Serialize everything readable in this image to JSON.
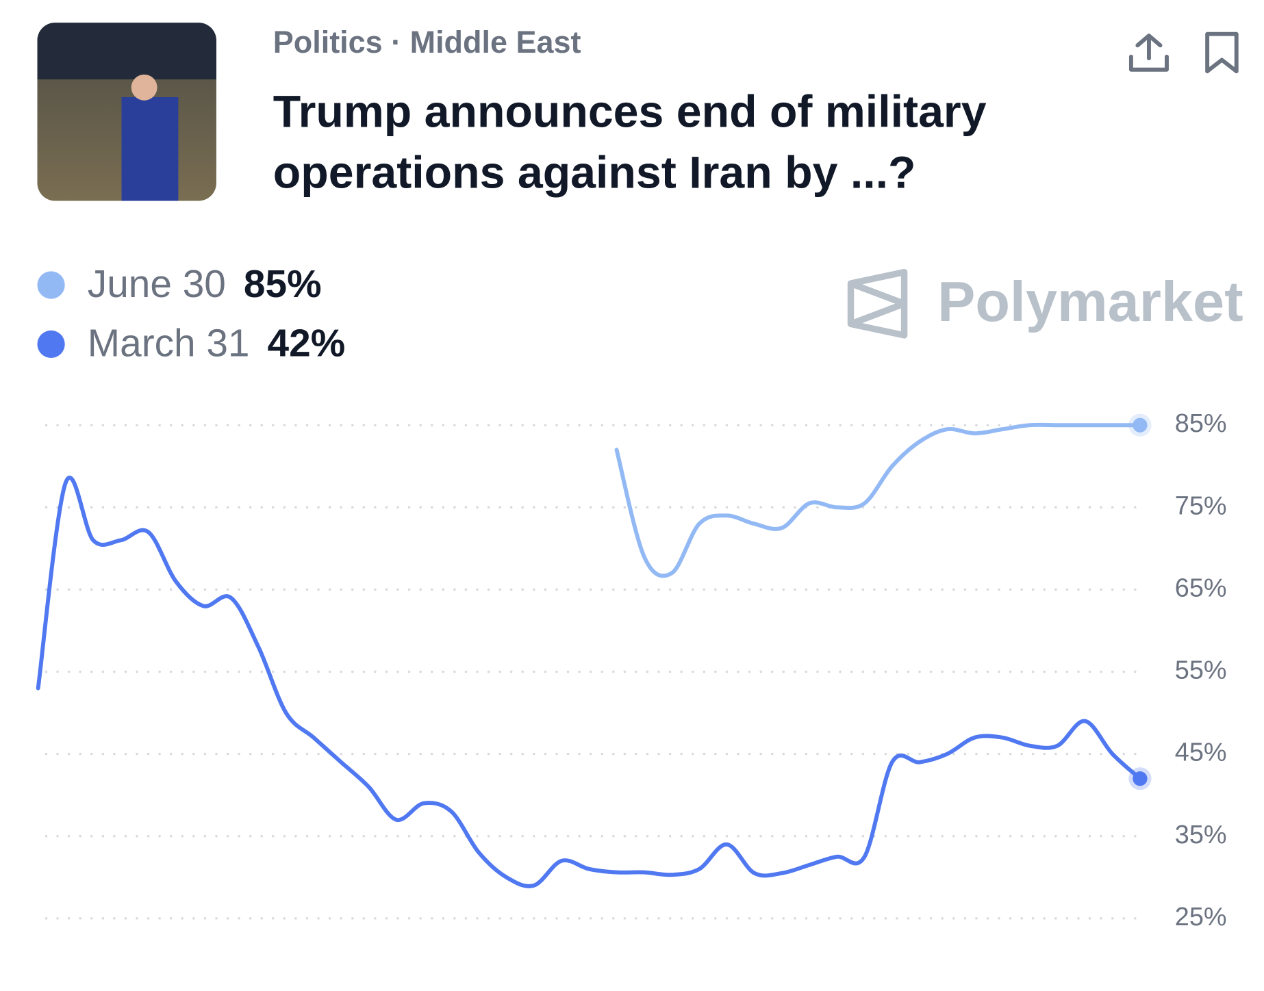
{
  "header": {
    "category": "Politics · Middle East",
    "title_lines": [
      "Trump announces end of military",
      "operations against Iran by ...?"
    ],
    "brand": "Polymarket"
  },
  "chart_data": {
    "type": "line",
    "categories": [
      null,
      null,
      null,
      null,
      null,
      null,
      null,
      null,
      null,
      null,
      null,
      null,
      null,
      null,
      null,
      null,
      null,
      null,
      null,
      null,
      null,
      null,
      null,
      null,
      null,
      null,
      null,
      null,
      null,
      null,
      null,
      null,
      null,
      null,
      null,
      null,
      null,
      null,
      null,
      null,
      null
    ],
    "series": [
      {
        "name": "June 30",
        "legend_value": "85%",
        "color": "#93b9f5",
        "values": [
          null,
          null,
          null,
          null,
          null,
          null,
          null,
          null,
          null,
          null,
          null,
          null,
          null,
          null,
          null,
          null,
          null,
          null,
          null,
          null,
          null,
          82,
          69,
          67,
          73,
          74,
          73,
          72.5,
          75.5,
          75,
          75.5,
          80,
          83,
          84.5,
          84,
          84.5,
          85,
          85,
          85,
          85,
          85
        ]
      },
      {
        "name": "March 31",
        "legend_value": "42%",
        "color": "#5078f0",
        "values": [
          53,
          78,
          71,
          71,
          72,
          66,
          63,
          64,
          58,
          50,
          47,
          44,
          41,
          37,
          39,
          38,
          33,
          30,
          29,
          32,
          31,
          30.6,
          30.6,
          30.3,
          31,
          34,
          30.5,
          30.5,
          31.5,
          32.5,
          32.5,
          44,
          44,
          45,
          47,
          47,
          46,
          46,
          49,
          45,
          42
        ]
      }
    ],
    "ylim": [
      25,
      85
    ],
    "yticks": [
      {
        "value": 25,
        "label": "25%"
      },
      {
        "value": 35,
        "label": "35%"
      },
      {
        "value": 45,
        "label": "45%"
      },
      {
        "value": 55,
        "label": "55%"
      },
      {
        "value": 65,
        "label": "65%"
      },
      {
        "value": 75,
        "label": "75%"
      },
      {
        "value": 85,
        "label": "85%"
      }
    ],
    "grid": true
  }
}
